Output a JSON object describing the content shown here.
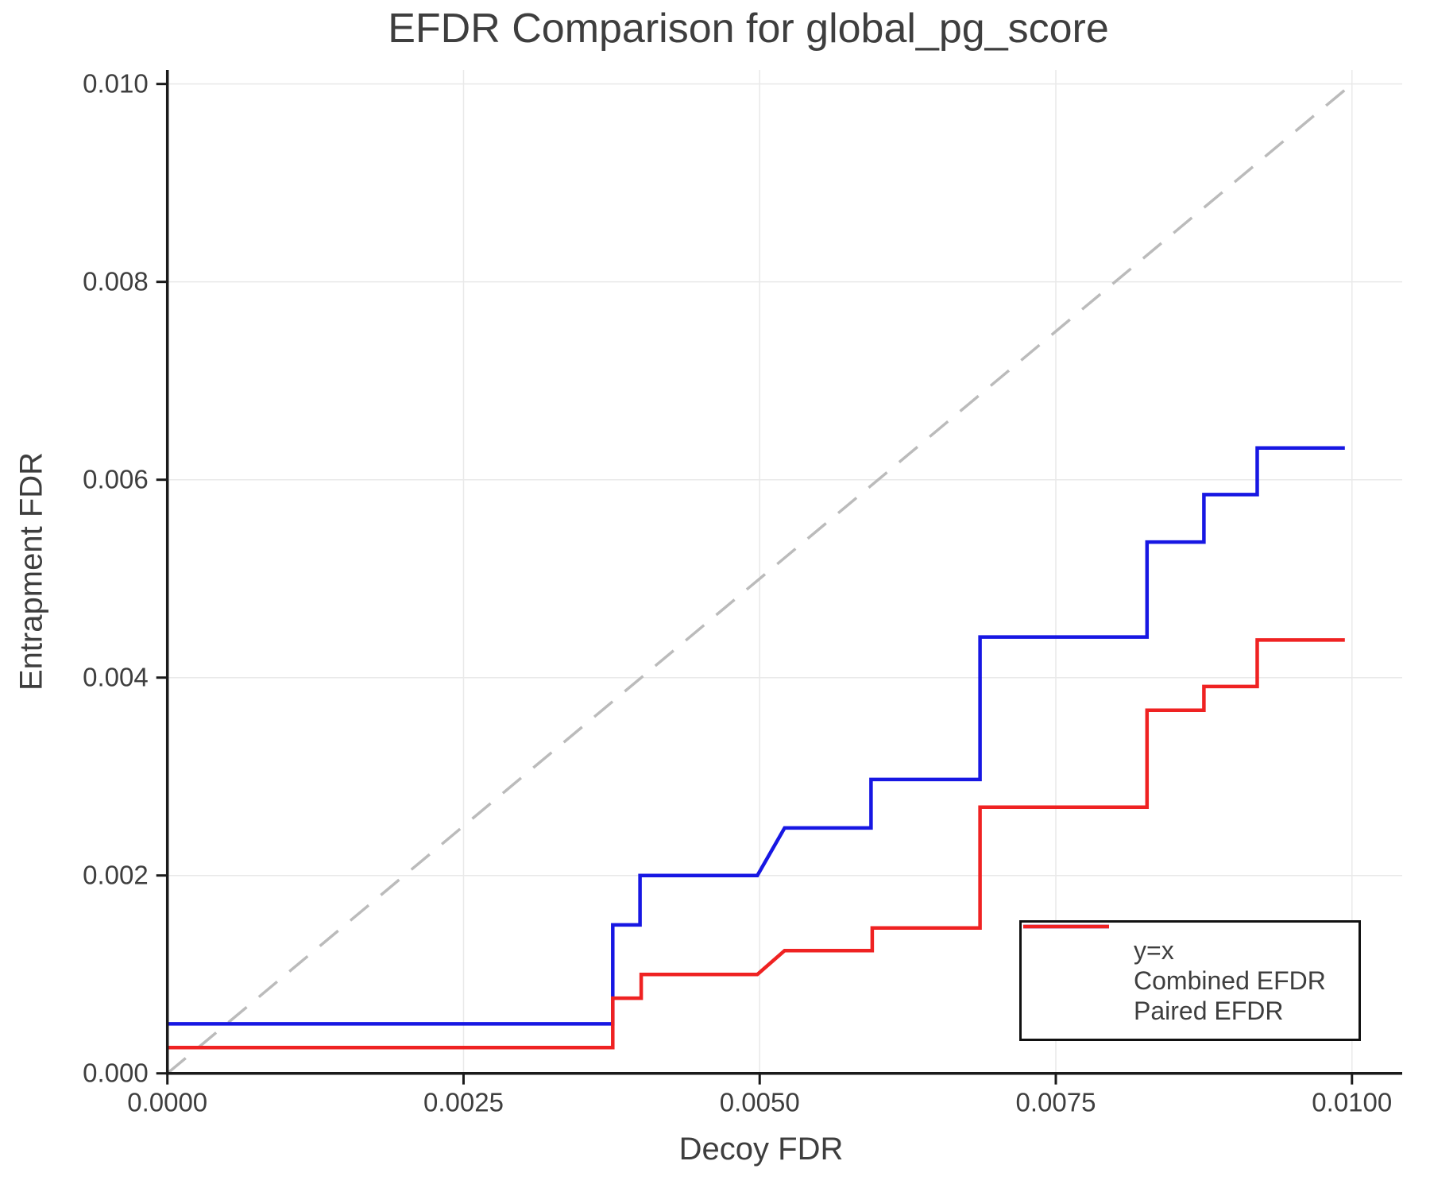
{
  "title": "EFDR Comparison for global_pg_score",
  "chart_data": {
    "type": "line",
    "title": "EFDR Comparison for global_pg_score",
    "xlabel": "Decoy FDR",
    "ylabel": "Entrapment FDR",
    "xlim": [
      0,
      0.010424
    ],
    "ylim": [
      0,
      0.010142
    ],
    "grid": true,
    "legend_position": "lower right",
    "x_ticks": {
      "values": [
        0,
        0.0025,
        0.005,
        0.0075,
        0.01
      ],
      "labels": [
        "0.0000",
        "0.0025",
        "0.0050",
        "0.0075",
        "0.0100"
      ]
    },
    "y_ticks": {
      "values": [
        0,
        0.002,
        0.004,
        0.006,
        0.008,
        0.01
      ],
      "labels": [
        "0.000",
        "0.002",
        "0.004",
        "0.006",
        "0.008",
        "0.010"
      ]
    },
    "series": [
      {
        "name": "y=x",
        "style": "dashed",
        "color": "#bbbbbb",
        "width": 3.5,
        "dash": [
          30,
          20
        ],
        "points": [
          [
            0,
            0
          ],
          [
            0.01,
            0.01
          ]
        ]
      },
      {
        "name": "Combined EFDR",
        "style": "solid",
        "color": "#1717e3",
        "width": 4.5,
        "points": [
          [
            0.0,
            0.0005
          ],
          [
            0.00376,
            0.0005
          ],
          [
            0.00376,
            0.0015
          ],
          [
            0.00399,
            0.0015
          ],
          [
            0.00399,
            0.002
          ],
          [
            0.00498,
            0.002
          ],
          [
            0.00521,
            0.00248
          ],
          [
            0.00594,
            0.00248
          ],
          [
            0.00594,
            0.00297
          ],
          [
            0.00686,
            0.00297
          ],
          [
            0.00686,
            0.00441
          ],
          [
            0.00827,
            0.00441
          ],
          [
            0.00827,
            0.00537
          ],
          [
            0.00875,
            0.00537
          ],
          [
            0.00875,
            0.00585
          ],
          [
            0.0092,
            0.00585
          ],
          [
            0.0092,
            0.00632
          ],
          [
            0.00994,
            0.00632
          ]
        ]
      },
      {
        "name": "Paired EFDR",
        "style": "solid",
        "color": "#ef2222",
        "width": 4.5,
        "points": [
          [
            0.0,
            0.00026
          ],
          [
            0.00376,
            0.00026
          ],
          [
            0.00376,
            0.00076
          ],
          [
            0.004,
            0.00076
          ],
          [
            0.004,
            0.001
          ],
          [
            0.00498,
            0.001
          ],
          [
            0.00521,
            0.00124
          ],
          [
            0.00595,
            0.00124
          ],
          [
            0.00595,
            0.00147
          ],
          [
            0.00686,
            0.00147
          ],
          [
            0.00686,
            0.00269
          ],
          [
            0.00827,
            0.00269
          ],
          [
            0.00827,
            0.00367
          ],
          [
            0.00875,
            0.00367
          ],
          [
            0.00875,
            0.00391
          ],
          [
            0.0092,
            0.00391
          ],
          [
            0.0092,
            0.00438
          ],
          [
            0.00994,
            0.00438
          ]
        ]
      }
    ],
    "style": {
      "grid_color": "#e9e9e9",
      "spine_color": "#1a1a1a",
      "text_color": "#3e3e3e",
      "background": "#ffffff"
    }
  }
}
